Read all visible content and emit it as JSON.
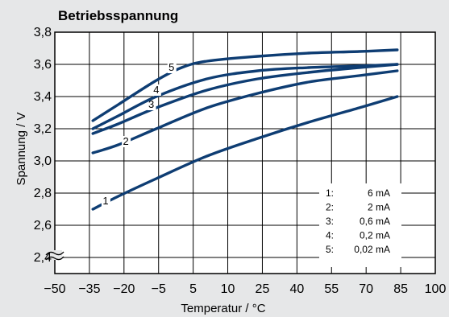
{
  "chart_data": {
    "type": "line",
    "title": "Betriebsspannung",
    "xlabel": "Temperatur / °C",
    "ylabel": "Spannung / V",
    "xlim": [
      -50,
      100
    ],
    "ylim": [
      2.3,
      3.8
    ],
    "x_ticks": [
      "−50",
      "−35",
      "−20",
      "−5",
      "5",
      "10",
      "25",
      "40",
      "55",
      "70",
      "85",
      "100"
    ],
    "y_ticks": [
      "3,8",
      "3,6",
      "3,4",
      "3,2",
      "3,0",
      "2,8",
      "2,6",
      "2,4"
    ],
    "axis_break": true,
    "grid": true,
    "series": [
      {
        "name": "6 mA",
        "label": "1",
        "x": [
          -35,
          -25,
          -10,
          10,
          30,
          50,
          70,
          85
        ],
        "y": [
          2.7,
          2.78,
          2.89,
          3.03,
          3.14,
          3.24,
          3.33,
          3.4
        ]
      },
      {
        "name": "2 mA",
        "label": "2",
        "x": [
          -35,
          -25,
          -10,
          10,
          30,
          50,
          70,
          85
        ],
        "y": [
          3.05,
          3.1,
          3.2,
          3.33,
          3.42,
          3.49,
          3.53,
          3.56
        ]
      },
      {
        "name": "0,6 mA",
        "label": "3",
        "x": [
          -35,
          -25,
          -10,
          10,
          30,
          50,
          70,
          85
        ],
        "y": [
          3.17,
          3.23,
          3.33,
          3.44,
          3.51,
          3.55,
          3.58,
          3.6
        ]
      },
      {
        "name": "0,2 mA",
        "label": "4",
        "x": [
          -35,
          -25,
          -10,
          10,
          30,
          50,
          70,
          85
        ],
        "y": [
          3.2,
          3.28,
          3.4,
          3.51,
          3.56,
          3.58,
          3.59,
          3.6
        ]
      },
      {
        "name": "0,02 mA",
        "label": "5",
        "x": [
          -35,
          -25,
          -10,
          0,
          10,
          30,
          50,
          70,
          85
        ],
        "y": [
          3.25,
          3.35,
          3.5,
          3.58,
          3.62,
          3.65,
          3.67,
          3.68,
          3.69
        ]
      }
    ],
    "legend": {
      "placement": "bottom-right",
      "entries": [
        {
          "key": "1:",
          "value": "6 mA"
        },
        {
          "key": "2:",
          "value": "2 mA"
        },
        {
          "key": "3:",
          "value": "0,6 mA"
        },
        {
          "key": "4:",
          "value": "0,2 mA"
        },
        {
          "key": "5:",
          "value": "0,02 mA"
        }
      ]
    },
    "colors": {
      "line": "#0e3d73",
      "grid": "#000000",
      "background": "#e6e7e8",
      "plot_background": "#ffffff"
    }
  }
}
